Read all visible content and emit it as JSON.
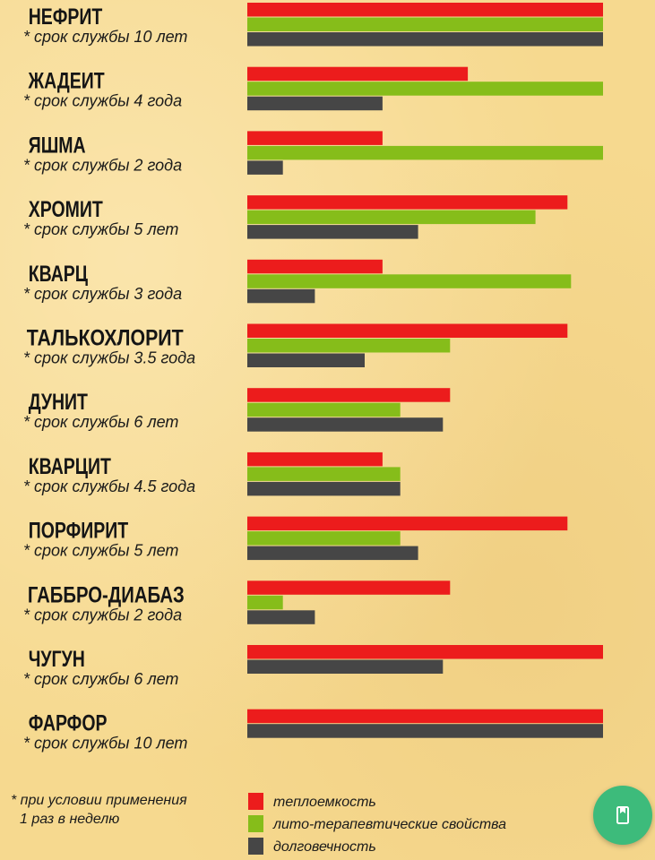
{
  "chart_data": {
    "type": "bar",
    "orientation": "horizontal",
    "scale_max": 100,
    "categories": [
      {
        "name": "НЕФРИТ",
        "life": "* срок службы 10 лет"
      },
      {
        "name": "ЖАДЕИТ",
        "life": "* срок службы 4 года"
      },
      {
        "name": "ЯШМА",
        "life": "* срок службы  2 года"
      },
      {
        "name": "ХРОМИТ",
        "life": "* срок службы  5 лет"
      },
      {
        "name": "КВАРЦ",
        "life": "* срок службы 3 года"
      },
      {
        "name": "ТАЛЬКОХЛОРИТ",
        "life": "* срок службы  3.5 года"
      },
      {
        "name": "ДУНИТ",
        "life": "* срок службы 6 лет"
      },
      {
        "name": "КВАРЦИТ",
        "life": "* срок службы 4.5 года"
      },
      {
        "name": "ПОРФИРИТ",
        "life": "* срок службы 5 лет"
      },
      {
        "name": "ГАББРО-ДИАБАЗ",
        "life": "* срок службы  2 года"
      },
      {
        "name": "ЧУГУН",
        "life": "* срок службы  6 лет"
      },
      {
        "name": "ФАРФОР",
        "life": "* срок службы 10 лет"
      }
    ],
    "series": [
      {
        "name": "теплоемкость",
        "color": "#ec1c1c",
        "values": [
          100,
          62,
          38,
          90,
          38,
          90,
          57,
          38,
          90,
          57,
          100,
          100
        ]
      },
      {
        "name": "лито-терапевтические свойства",
        "color": "#86bd1a",
        "values": [
          100,
          100,
          100,
          81,
          91,
          57,
          43,
          43,
          43,
          10,
          null,
          null
        ]
      },
      {
        "name": "долговечность",
        "color": "#464646",
        "values": [
          100,
          38,
          10,
          48,
          19,
          33,
          55,
          43,
          48,
          19,
          55,
          100
        ]
      }
    ],
    "footnote": [
      "* при условии применения",
      "1 раз в неделю"
    ],
    "legend_position": "bottom"
  }
}
